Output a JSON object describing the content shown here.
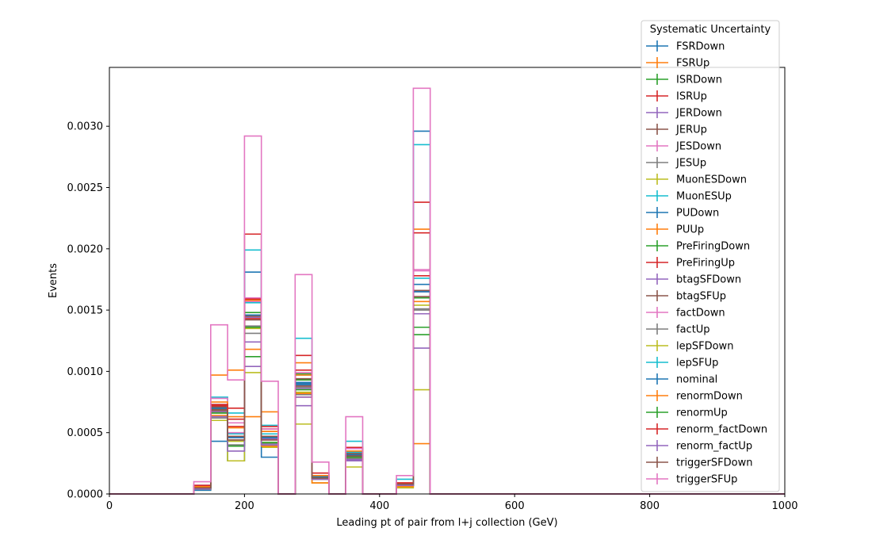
{
  "chart_data": {
    "type": "line",
    "title": "",
    "xlabel": "Leading pt of pair from l+j collection (GeV)",
    "ylabel": "Events",
    "xlim": [
      0,
      1000
    ],
    "ylim": [
      0,
      0.00348
    ],
    "x_ticks": [
      0,
      200,
      400,
      600,
      800,
      1000
    ],
    "y_ticks": [
      0.0,
      0.0005,
      0.001,
      0.0015,
      0.002,
      0.0025,
      0.003
    ],
    "y_tick_labels": [
      "0.0000",
      "0.0005",
      "0.0010",
      "0.0015",
      "0.0020",
      "0.0025",
      "0.0030"
    ],
    "bin_edges": [
      0,
      25,
      50,
      75,
      100,
      125,
      150,
      175,
      200,
      225,
      250,
      275,
      300,
      325,
      350,
      375,
      400,
      425,
      450,
      475,
      500,
      525,
      550,
      575,
      600,
      625,
      650,
      675,
      700,
      725,
      750,
      775,
      800,
      825,
      850,
      875,
      900,
      925,
      950,
      975,
      1000
    ],
    "grid": false,
    "legend": {
      "title": "Systematic Uncertainty",
      "position": "top-right"
    },
    "series": [
      {
        "name": "FSRDown",
        "color": "#1f77b4",
        "values": [
          0,
          0,
          0,
          0,
          0,
          5e-05,
          0.00072,
          0.00027,
          0.00146,
          0.00046,
          0,
          0.00089,
          0.00013,
          0,
          0.0003,
          0,
          0,
          8e-05,
          0.00296,
          0,
          0,
          0,
          0,
          0,
          0,
          0,
          0,
          0,
          0,
          0,
          0,
          0,
          0,
          0,
          0,
          0,
          0,
          0,
          0,
          0
        ]
      },
      {
        "name": "FSRUp",
        "color": "#ff7f0e",
        "values": [
          0,
          0,
          0,
          0,
          0,
          6e-05,
          0.00097,
          0.00101,
          0.00118,
          0.00067,
          0,
          0.00107,
          0.00012,
          0,
          0.0003,
          0,
          0,
          8e-05,
          0.00216,
          0,
          0,
          0,
          0,
          0,
          0,
          0,
          0,
          0,
          0,
          0,
          0,
          0,
          0,
          0,
          0,
          0,
          0,
          0,
          0,
          0
        ]
      },
      {
        "name": "ISRDown",
        "color": "#2ca02c",
        "values": [
          0,
          0,
          0,
          0,
          0,
          5e-05,
          0.0007,
          0.0004,
          0.00112,
          0.00046,
          0,
          0.00098,
          0.00014,
          0,
          0.00032,
          0,
          0,
          8e-05,
          0.00136,
          0,
          0,
          0,
          0,
          0,
          0,
          0,
          0,
          0,
          0,
          0,
          0,
          0,
          0,
          0,
          0,
          0,
          0,
          0,
          0,
          0
        ]
      },
      {
        "name": "ISRUp",
        "color": "#d62728",
        "values": [
          0,
          0,
          0,
          0,
          0,
          6e-05,
          0.0007,
          0.0007,
          0.00212,
          0.00051,
          0,
          0.00113,
          0.00013,
          0,
          0.00034,
          0,
          0,
          8e-05,
          0.00238,
          0,
          0,
          0,
          0,
          0,
          0,
          0,
          0,
          0,
          0,
          0,
          0,
          0,
          0,
          0,
          0,
          0,
          0,
          0,
          0,
          0
        ]
      },
      {
        "name": "JERDown",
        "color": "#9467bd",
        "values": [
          0,
          0,
          0,
          0,
          0,
          5e-05,
          0.00069,
          0.00047,
          0.00144,
          0.00045,
          0,
          0.00086,
          0.00013,
          0,
          0.00031,
          0,
          0,
          8e-05,
          0.00165,
          0,
          0,
          0,
          0,
          0,
          0,
          0,
          0,
          0,
          0,
          0,
          0,
          0,
          0,
          0,
          0,
          0,
          0,
          0,
          0,
          0
        ]
      },
      {
        "name": "JERUp",
        "color": "#8c564b",
        "values": [
          0,
          0,
          0,
          0,
          0,
          5e-05,
          0.00069,
          0.00047,
          0.00145,
          0.00046,
          0,
          0.0009,
          0.00014,
          0,
          0.00032,
          0,
          0,
          8e-05,
          0.00166,
          0,
          0,
          0,
          0,
          0,
          0,
          0,
          0,
          0,
          0,
          0,
          0,
          0,
          0,
          0,
          0,
          0,
          0,
          0,
          0,
          0
        ]
      },
      {
        "name": "JESDown",
        "color": "#e377c2",
        "values": [
          0,
          0,
          0,
          0,
          0,
          4e-05,
          0.00066,
          0.0005,
          0.00157,
          0.00044,
          0,
          0.00088,
          0.00013,
          0,
          0.00029,
          0,
          0,
          8e-05,
          0.00183,
          0,
          0,
          0,
          0,
          0,
          0,
          0,
          0,
          0,
          0,
          0,
          0,
          0,
          0,
          0,
          0,
          0,
          0,
          0,
          0,
          0
        ]
      },
      {
        "name": "JESUp",
        "color": "#7f7f7f",
        "values": [
          0,
          0,
          0,
          0,
          0,
          5e-05,
          0.00068,
          0.00044,
          0.00137,
          0.00045,
          0,
          0.00087,
          0.00014,
          0,
          0.00033,
          0,
          0,
          8e-05,
          0.00151,
          0,
          0,
          0,
          0,
          0,
          0,
          0,
          0,
          0,
          0,
          0,
          0,
          0,
          0,
          0,
          0,
          0,
          0,
          0,
          0,
          0
        ]
      },
      {
        "name": "MuonESDown",
        "color": "#bcbd22",
        "values": [
          0,
          0,
          0,
          0,
          0,
          3e-05,
          0.0006,
          0.00027,
          0.00099,
          0.00038,
          0,
          0.00057,
          9e-05,
          0,
          0.00022,
          0,
          0,
          5e-05,
          0.00085,
          0,
          0,
          0,
          0,
          0,
          0,
          0,
          0,
          0,
          0,
          0,
          0,
          0,
          0,
          0,
          0,
          0,
          0,
          0,
          0,
          0
        ]
      },
      {
        "name": "MuonESUp",
        "color": "#17becf",
        "values": [
          0,
          0,
          0,
          0,
          0,
          7e-05,
          0.00079,
          0.00066,
          0.00199,
          0.00056,
          0,
          0.00127,
          0.00014,
          0,
          0.00043,
          0,
          0,
          0.00012,
          0.00285,
          0,
          0,
          0,
          0,
          0,
          0,
          0,
          0,
          0,
          0,
          0,
          0,
          0,
          0,
          0,
          0,
          0,
          0,
          0,
          0,
          0
        ]
      },
      {
        "name": "PUDown",
        "color": "#1f77b4",
        "values": [
          0,
          0,
          0,
          0,
          0,
          3e-05,
          0.00043,
          0.00047,
          0.00181,
          0.0003,
          0,
          0.00091,
          0.00014,
          0,
          0.00031,
          0,
          0,
          8e-05,
          0.00171,
          0,
          0,
          0,
          0,
          0,
          0,
          0,
          0,
          0,
          0,
          0,
          0,
          0,
          0,
          0,
          0,
          0,
          0,
          0,
          0,
          0
        ]
      },
      {
        "name": "PUUp",
        "color": "#ff7f0e",
        "values": [
          0,
          0,
          0,
          0,
          0,
          6e-05,
          0.00064,
          0.00063,
          0.00063,
          0.00039,
          0,
          0.00082,
          9e-05,
          0,
          0.00027,
          0,
          0,
          6e-05,
          0.00041,
          0,
          0,
          0,
          0,
          0,
          0,
          0,
          0,
          0,
          0,
          0,
          0,
          0,
          0,
          0,
          0,
          0,
          0,
          0,
          0,
          0
        ]
      },
      {
        "name": "PreFiringDown",
        "color": "#2ca02c",
        "values": [
          0,
          0,
          0,
          0,
          0,
          5e-05,
          0.0007,
          0.00047,
          0.00148,
          0.00046,
          0,
          0.00093,
          0.00014,
          0,
          0.00032,
          0,
          0,
          8e-05,
          0.0013,
          0,
          0,
          0,
          0,
          0,
          0,
          0,
          0,
          0,
          0,
          0,
          0,
          0,
          0,
          0,
          0,
          0,
          0,
          0,
          0,
          0
        ]
      },
      {
        "name": "PreFiringUp",
        "color": "#d62728",
        "values": [
          0,
          0,
          0,
          0,
          0,
          5e-05,
          0.00072,
          0.00055,
          0.00143,
          0.00053,
          0,
          0.00079,
          0.00013,
          0,
          0.00032,
          0,
          0,
          8e-05,
          0.00213,
          0,
          0,
          0,
          0,
          0,
          0,
          0,
          0,
          0,
          0,
          0,
          0,
          0,
          0,
          0,
          0,
          0,
          0,
          0,
          0,
          0
        ]
      },
      {
        "name": "btagSFDown",
        "color": "#9467bd",
        "values": [
          0,
          0,
          0,
          0,
          0,
          4e-05,
          0.00067,
          0.00046,
          0.00104,
          0.00045,
          0,
          0.00072,
          0.00012,
          0,
          0.00028,
          0,
          0,
          8e-05,
          0.00119,
          0,
          0,
          0,
          0,
          0,
          0,
          0,
          0,
          0,
          0,
          0,
          0,
          0,
          0,
          0,
          0,
          0,
          0,
          0,
          0,
          0
        ]
      },
      {
        "name": "btagSFUp",
        "color": "#8c564b",
        "values": [
          0,
          0,
          0,
          0,
          0,
          5e-05,
          0.00071,
          0.00047,
          0.00146,
          0.00047,
          0,
          0.00094,
          0.00014,
          0,
          0.00033,
          0,
          0,
          8e-05,
          0.00166,
          0,
          0,
          0,
          0,
          0,
          0,
          0,
          0,
          0,
          0,
          0,
          0,
          0,
          0,
          0,
          0,
          0,
          0,
          0,
          0,
          0
        ]
      },
      {
        "name": "factDown",
        "color": "#e377c2",
        "values": [
          0,
          0,
          0,
          0,
          0,
          7e-05,
          0.00078,
          0.00058,
          0.0016,
          0.00053,
          0,
          0.00099,
          0.00017,
          0,
          0.00037,
          0,
          0,
          9e-05,
          0.00182,
          0,
          0,
          0,
          0,
          0,
          0,
          0,
          0,
          0,
          0,
          0,
          0,
          0,
          0,
          0,
          0,
          0,
          0,
          0,
          0,
          0
        ]
      },
      {
        "name": "factUp",
        "color": "#7f7f7f",
        "values": [
          0,
          0,
          0,
          0,
          0,
          4e-05,
          0.00062,
          0.0004,
          0.00131,
          0.00041,
          0,
          0.00081,
          0.00012,
          0,
          0.00029,
          0,
          0,
          7e-05,
          0.0015,
          0,
          0,
          0,
          0,
          0,
          0,
          0,
          0,
          0,
          0,
          0,
          0,
          0,
          0,
          0,
          0,
          0,
          0,
          0,
          0,
          0
        ]
      },
      {
        "name": "lepSFDown",
        "color": "#bcbd22",
        "values": [
          0,
          0,
          0,
          0,
          0,
          4e-05,
          0.00066,
          0.00043,
          0.00135,
          0.00042,
          0,
          0.00083,
          0.00013,
          0,
          0.0003,
          0,
          0,
          7e-05,
          0.00154,
          0,
          0,
          0,
          0,
          0,
          0,
          0,
          0,
          0,
          0,
          0,
          0,
          0,
          0,
          0,
          0,
          0,
          0,
          0,
          0,
          0
        ]
      },
      {
        "name": "lepSFUp",
        "color": "#17becf",
        "values": [
          0,
          0,
          0,
          0,
          0,
          5e-05,
          0.00073,
          0.00049,
          0.00156,
          0.00049,
          0,
          0.00097,
          0.00015,
          0,
          0.00034,
          0,
          0,
          8e-05,
          0.00176,
          0,
          0,
          0,
          0,
          0,
          0,
          0,
          0,
          0,
          0,
          0,
          0,
          0,
          0,
          0,
          0,
          0,
          0,
          0,
          0,
          0
        ]
      },
      {
        "name": "nominal",
        "color": "#1f77b4",
        "values": [
          0,
          0,
          0,
          0,
          0,
          5e-05,
          0.0007,
          0.00046,
          0.00146,
          0.00046,
          0,
          0.0009,
          0.00014,
          0,
          0.00032,
          0,
          0,
          8e-05,
          0.00165,
          0,
          0,
          0,
          0,
          0,
          0,
          0,
          0,
          0,
          0,
          0,
          0,
          0,
          0,
          0,
          0,
          0,
          0,
          0,
          0,
          0
        ]
      },
      {
        "name": "renormDown",
        "color": "#ff7f0e",
        "values": [
          0,
          0,
          0,
          0,
          0,
          6e-05,
          0.00075,
          0.00054,
          0.00158,
          0.00051,
          0,
          0.00097,
          0.00015,
          0,
          0.00035,
          0,
          0,
          9e-05,
          0.00157,
          0,
          0,
          0,
          0,
          0,
          0,
          0,
          0,
          0,
          0,
          0,
          0,
          0,
          0,
          0,
          0,
          0,
          0,
          0,
          0,
          0
        ]
      },
      {
        "name": "renormUp",
        "color": "#2ca02c",
        "values": [
          0,
          0,
          0,
          0,
          0,
          4e-05,
          0.00066,
          0.00039,
          0.00136,
          0.00042,
          0,
          0.00085,
          0.00013,
          0,
          0.0003,
          0,
          0,
          7e-05,
          0.0016,
          0,
          0,
          0,
          0,
          0,
          0,
          0,
          0,
          0,
          0,
          0,
          0,
          0,
          0,
          0,
          0,
          0,
          0,
          0,
          0,
          0
        ]
      },
      {
        "name": "renorm_factDown",
        "color": "#d62728",
        "values": [
          0,
          0,
          0,
          0,
          0,
          7e-05,
          0.00073,
          0.00061,
          0.00159,
          0.00055,
          0,
          0.00101,
          0.00017,
          0,
          0.00038,
          0,
          0,
          9e-05,
          0.00178,
          0,
          0,
          0,
          0,
          0,
          0,
          0,
          0,
          0,
          0,
          0,
          0,
          0,
          0,
          0,
          0,
          0,
          0,
          0,
          0,
          0
        ]
      },
      {
        "name": "renorm_factUp",
        "color": "#9467bd",
        "values": [
          0,
          0,
          0,
          0,
          0,
          4e-05,
          0.00063,
          0.00035,
          0.00124,
          0.0004,
          0,
          0.00079,
          0.00012,
          0,
          0.00027,
          0,
          0,
          7e-05,
          0.00147,
          0,
          0,
          0,
          0,
          0,
          0,
          0,
          0,
          0,
          0,
          0,
          0,
          0,
          0,
          0,
          0,
          0,
          0,
          0,
          0,
          0
        ]
      },
      {
        "name": "triggerSFDown",
        "color": "#8c564b",
        "values": [
          0,
          0,
          0,
          0,
          0,
          5e-05,
          0.00068,
          0.00044,
          0.00142,
          0.00044,
          0,
          0.00088,
          0.00013,
          0,
          0.00031,
          0,
          0,
          8e-05,
          0.00161,
          0,
          0,
          0,
          0,
          0,
          0,
          0,
          0,
          0,
          0,
          0,
          0,
          0,
          0,
          0,
          0,
          0,
          0,
          0,
          0,
          0
        ]
      },
      {
        "name": "triggerSFUp",
        "color": "#e377c2",
        "values": [
          0,
          0,
          0,
          0,
          0,
          0.0001,
          0.00138,
          0.00093,
          0.00292,
          0.00092,
          0,
          0.00179,
          0.00026,
          0,
          0.00063,
          0,
          0,
          0.00015,
          0.00331,
          0,
          0,
          0,
          0,
          0,
          0,
          0,
          0,
          0,
          0,
          0,
          0,
          0,
          0,
          0,
          0,
          0,
          0,
          0,
          0,
          0
        ]
      }
    ]
  }
}
